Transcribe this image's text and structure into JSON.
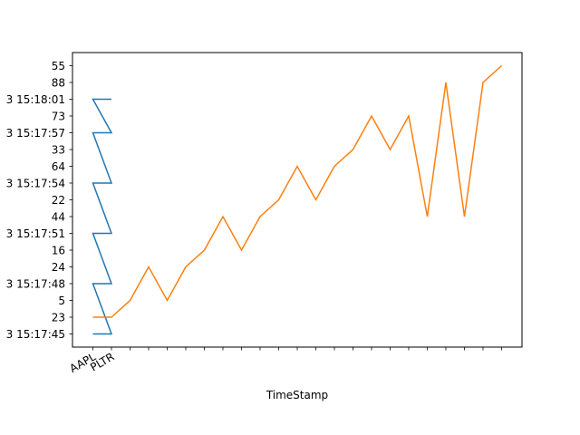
{
  "chart_data": {
    "type": "line",
    "xlabel": "TimeStamp",
    "ylabel": "",
    "x_tick_labels": [
      "AAPL",
      "PLTR"
    ],
    "y_categories": [
      "3 15:17:45",
      "23",
      "5",
      "3 15:17:48",
      "24",
      "16",
      "3 15:17:51",
      "44",
      "22",
      "3 15:17:54",
      "64",
      "33",
      "3 15:17:57",
      "73",
      "3 15:18:01",
      "88",
      "55"
    ],
    "x_categories_count": 23,
    "grid": false,
    "series": [
      {
        "color": "#1f77b4",
        "points": [
          [
            0,
            0
          ],
          [
            1,
            0
          ],
          [
            0,
            3
          ],
          [
            1,
            3
          ],
          [
            0,
            6
          ],
          [
            1,
            6
          ],
          [
            0,
            9
          ],
          [
            1,
            9
          ],
          [
            0,
            12
          ],
          [
            1,
            12
          ],
          [
            0,
            14
          ],
          [
            1,
            14
          ]
        ]
      },
      {
        "color": "#ff7f0e",
        "points": [
          [
            0,
            1
          ],
          [
            1,
            1
          ],
          [
            2,
            2
          ],
          [
            3,
            4
          ],
          [
            4,
            2
          ],
          [
            5,
            4
          ],
          [
            6,
            5
          ],
          [
            7,
            7
          ],
          [
            8,
            5
          ],
          [
            9,
            7
          ],
          [
            10,
            8
          ],
          [
            11,
            10
          ],
          [
            12,
            8
          ],
          [
            13,
            10
          ],
          [
            14,
            11
          ],
          [
            15,
            13
          ],
          [
            16,
            11
          ],
          [
            17,
            13
          ],
          [
            18,
            7
          ],
          [
            19,
            15
          ],
          [
            20,
            7
          ],
          [
            21,
            15
          ],
          [
            22,
            16
          ]
        ]
      }
    ]
  }
}
